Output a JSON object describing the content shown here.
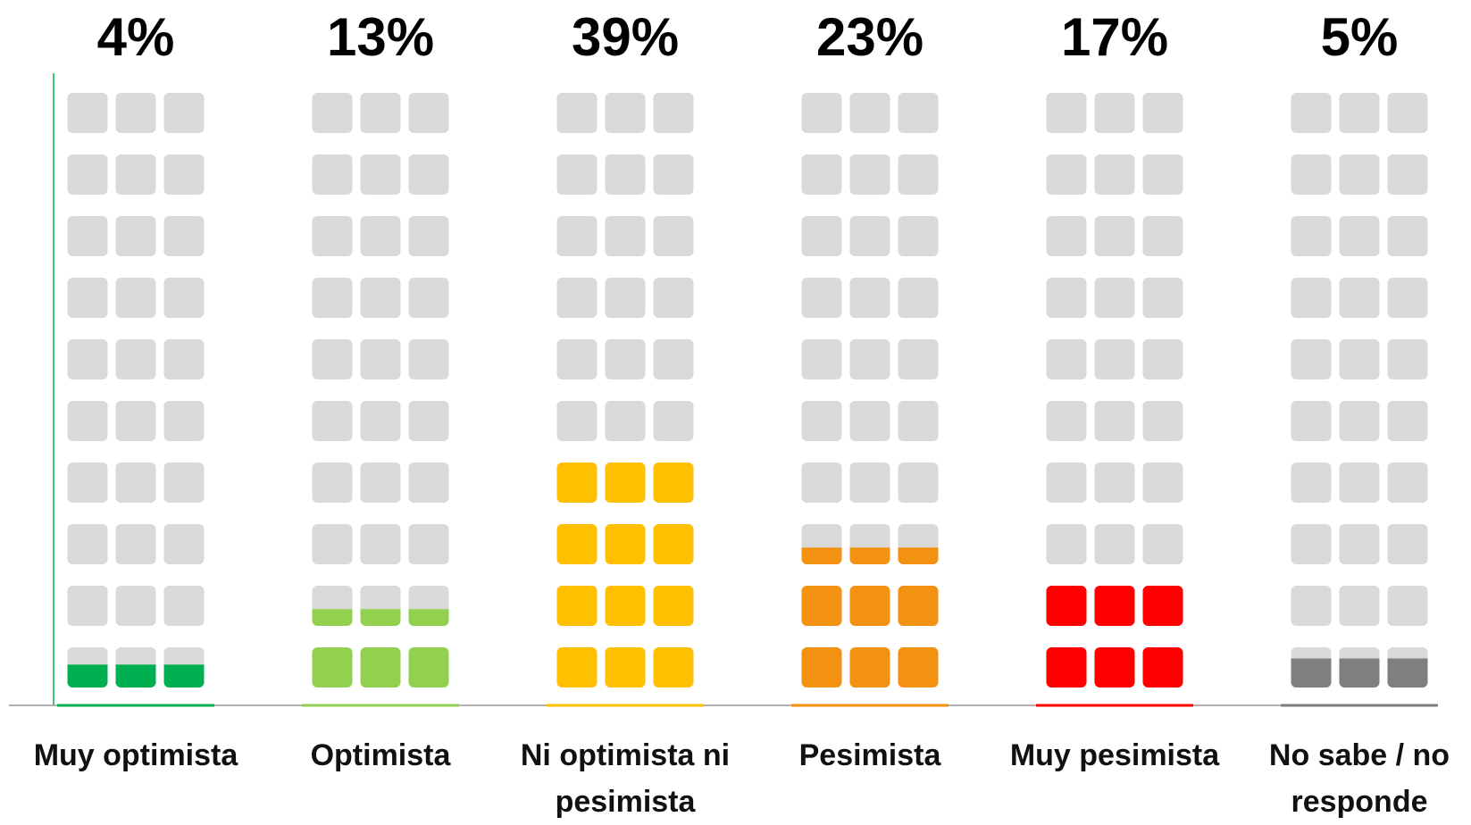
{
  "chart_data": {
    "type": "bar",
    "categories": [
      "Muy optimista",
      "Optimista",
      "Ni optimista ni pesimista",
      "Pesimista",
      "Muy pesimista",
      "No sabe / no responde"
    ],
    "values": [
      4,
      13,
      39,
      23,
      17,
      5
    ],
    "value_labels": [
      "4%",
      "13%",
      "39%",
      "23%",
      "17%",
      "5%"
    ],
    "colors": [
      "#00b050",
      "#92d050",
      "#ffc000",
      "#f39110",
      "#ff0000",
      "#7f7f7f"
    ],
    "ylim": [
      0,
      100
    ]
  }
}
